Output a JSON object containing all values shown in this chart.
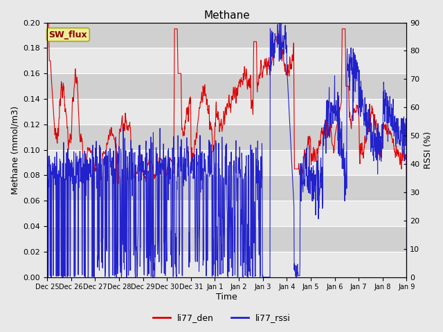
{
  "title": "Methane",
  "ylabel_left": "Methane (mmol/m3)",
  "ylabel_right": "RSSI (%)",
  "xlabel": "Time",
  "ylim_left": [
    0.0,
    0.2
  ],
  "ylim_right": [
    0,
    90
  ],
  "yticks_left": [
    0.0,
    0.02,
    0.04,
    0.06,
    0.08,
    0.1,
    0.12,
    0.14,
    0.16,
    0.18,
    0.2
  ],
  "yticks_right": [
    0,
    10,
    20,
    30,
    40,
    50,
    60,
    70,
    80,
    90
  ],
  "xtick_labels": [
    "Dec 25",
    "Dec 26",
    "Dec 27",
    "Dec 28",
    "Dec 29",
    "Dec 30",
    "Dec 31",
    "Jan 1",
    "Jan 2",
    "Jan 3",
    "Jan 4",
    "Jan 5",
    "Jan 6",
    "Jan 7",
    "Jan 8",
    "Jan 9"
  ],
  "line_red_label": "li77_den",
  "line_blue_label": "li77_rssi",
  "line_red_color": "#dd0000",
  "line_blue_color": "#2222cc",
  "sw_flux_label": "SW_flux",
  "sw_flux_bg": "#eeee99",
  "sw_flux_text_color": "#880000",
  "fig_bg_color": "#e8e8e8",
  "plot_bg_color": "#dcdcdc",
  "band_color_light": "#e8e8e8",
  "band_color_dark": "#d0d0d0",
  "grid_color": "#ffffff",
  "legend_linewidth": 2.0,
  "line_width": 0.8,
  "n_days": 15
}
